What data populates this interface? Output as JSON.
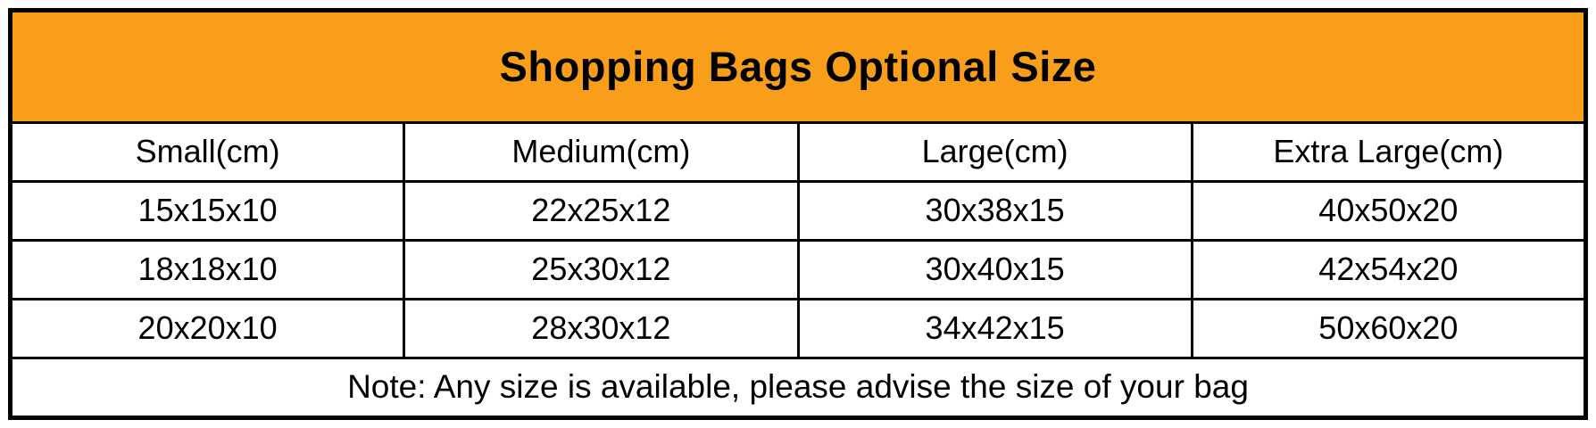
{
  "title": "Shopping Bags Optional Size",
  "table": {
    "headers": [
      "Small(cm)",
      "Medium(cm)",
      "Large(cm)",
      "Extra Large(cm)"
    ],
    "rows": [
      [
        "15x15x10",
        "22x25x12",
        "30x38x15",
        "40x50x20"
      ],
      [
        "18x18x10",
        "25x30x12",
        "30x40x15",
        "42x54x20"
      ],
      [
        "20x20x10",
        "28x30x12",
        "34x42x15",
        "50x60x20"
      ]
    ],
    "note": "Note: Any size is available, please advise the size of your bag"
  },
  "colors": {
    "title_bg": "#F99E1B",
    "border": "#000000",
    "text": "#000000",
    "cell_bg": "#FFFFFF"
  },
  "chart_data": {
    "type": "table",
    "title": "Shopping Bags Optional Size",
    "columns": [
      "Small(cm)",
      "Medium(cm)",
      "Large(cm)",
      "Extra Large(cm)"
    ],
    "rows": [
      [
        "15x15x10",
        "22x25x12",
        "30x38x15",
        "40x50x20"
      ],
      [
        "18x18x10",
        "25x30x12",
        "30x40x15",
        "42x54x20"
      ],
      [
        "20x20x10",
        "28x30x12",
        "34x42x15",
        "50x60x20"
      ]
    ],
    "note": "Note: Any size is available, please advise the size of your bag",
    "layout": {
      "title_band_bg": "#F99E1B",
      "grid": "on",
      "columns_equal_width": true
    }
  }
}
